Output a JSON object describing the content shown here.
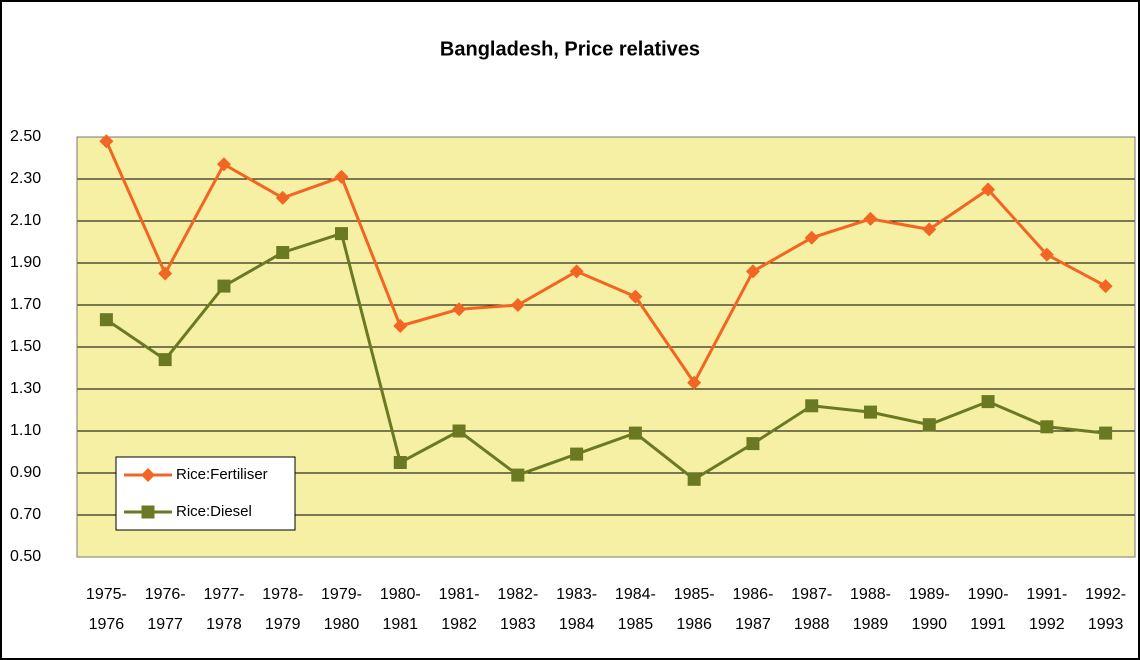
{
  "chart_data": {
    "type": "line",
    "title": "Bangladesh, Price relatives",
    "categories": [
      [
        "1975-",
        "1976"
      ],
      [
        "1976-",
        "1977"
      ],
      [
        "1977-",
        "1978"
      ],
      [
        "1978-",
        "1979"
      ],
      [
        "1979-",
        "1980"
      ],
      [
        "1980-",
        "1981"
      ],
      [
        "1981-",
        "1982"
      ],
      [
        "1982-",
        "1983"
      ],
      [
        "1983-",
        "1984"
      ],
      [
        "1984-",
        "1985"
      ],
      [
        "1985-",
        "1986"
      ],
      [
        "1986-",
        "1987"
      ],
      [
        "1987-",
        "1988"
      ],
      [
        "1988-",
        "1989"
      ],
      [
        "1989-",
        "1990"
      ],
      [
        "1990-",
        "1991"
      ],
      [
        "1991-",
        "1992"
      ],
      [
        "1992-",
        "1993"
      ]
    ],
    "series": [
      {
        "name": "Rice:Fertiliser",
        "color": "#f26522",
        "marker": "diamond",
        "values": [
          2.48,
          1.85,
          2.37,
          2.21,
          2.31,
          1.6,
          1.68,
          1.7,
          1.86,
          1.74,
          1.33,
          1.86,
          2.02,
          2.11,
          2.06,
          2.25,
          1.94,
          1.79
        ]
      },
      {
        "name": "Rice:Diesel",
        "color": "#6b7a22",
        "marker": "square",
        "values": [
          1.63,
          1.44,
          1.79,
          1.95,
          2.04,
          0.95,
          1.1,
          0.89,
          0.99,
          1.09,
          0.87,
          1.04,
          1.22,
          1.19,
          1.13,
          1.24,
          1.12,
          1.09
        ]
      }
    ],
    "ylim": [
      0.5,
      2.5
    ],
    "yticks": [
      {
        "value": 0.5,
        "label": "0.50"
      },
      {
        "value": 0.7,
        "label": "0.70"
      },
      {
        "value": 0.9,
        "label": "0.90"
      },
      {
        "value": 1.1,
        "label": "1.10"
      },
      {
        "value": 1.3,
        "label": "1.30"
      },
      {
        "value": 1.5,
        "label": "1.50"
      },
      {
        "value": 1.7,
        "label": "1.70"
      },
      {
        "value": 1.9,
        "label": "1.90"
      },
      {
        "value": 2.1,
        "label": "2.10"
      },
      {
        "value": 2.3,
        "label": "2.30"
      },
      {
        "value": 2.5,
        "label": "2.50"
      }
    ],
    "grid": true,
    "legend": "lower left",
    "plot_background": "#f5f0a3"
  }
}
